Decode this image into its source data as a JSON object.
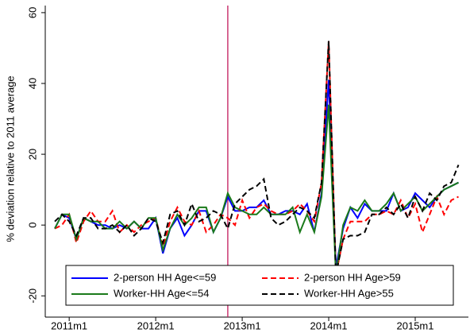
{
  "chart_data": {
    "type": "line",
    "y_label": "% deviation relative to 2011 average",
    "x": [
      "2010m11",
      "2010m12",
      "2011m1",
      "2011m2",
      "2011m3",
      "2011m4",
      "2011m5",
      "2011m6",
      "2011m7",
      "2011m8",
      "2011m9",
      "2011m10",
      "2011m11",
      "2011m12",
      "2012m1",
      "2012m2",
      "2012m3",
      "2012m4",
      "2012m5",
      "2012m6",
      "2012m7",
      "2012m8",
      "2012m9",
      "2012m10",
      "2012m11",
      "2012m12",
      "2013m1",
      "2013m2",
      "2013m3",
      "2013m4",
      "2013m5",
      "2013m6",
      "2013m7",
      "2013m8",
      "2013m9",
      "2013m10",
      "2013m11",
      "2013m12",
      "2014m1",
      "2014m2",
      "2014m3",
      "2014m4",
      "2014m5",
      "2014m6",
      "2014m7",
      "2014m8",
      "2014m9",
      "2014m10",
      "2014m11",
      "2014m12",
      "2015m1",
      "2015m2",
      "2015m3",
      "2015m4",
      "2015m5",
      "2015m6",
      "2015m7"
    ],
    "xticks": [
      "2011m1",
      "2012m1",
      "2013m1",
      "2014m1",
      "2015m1"
    ],
    "ylim": [
      -26,
      62
    ],
    "yticks": [
      -20,
      0,
      20,
      40,
      60
    ],
    "grid": false,
    "vline": {
      "x": "2012m11",
      "color": "#c2185b"
    },
    "series": [
      {
        "name": "2-person HH Age<=59",
        "color": "#0000ff",
        "dash": false,
        "values": [
          -1,
          3,
          2,
          -4,
          2,
          1,
          0,
          0,
          -1,
          0,
          -1,
          1,
          -1,
          -1,
          2,
          -8,
          -1,
          2,
          -3,
          0,
          4,
          4,
          -2,
          2,
          8,
          4,
          4,
          5,
          5,
          7,
          3,
          3,
          4,
          4,
          3,
          6,
          -2,
          9,
          41,
          -12,
          -1,
          5,
          2,
          6,
          4,
          4,
          4,
          9,
          4,
          5,
          9,
          7,
          5,
          8,
          10,
          11,
          12
        ]
      },
      {
        "name": "2-person HH Age>59",
        "color": "#ff0000",
        "dash": true,
        "values": [
          -1,
          0,
          3,
          -5,
          1,
          4,
          1,
          1,
          4,
          -2,
          0,
          -2,
          0,
          1,
          2,
          -6,
          1,
          5,
          1,
          0,
          4,
          -2,
          0,
          3,
          2,
          0,
          7,
          2,
          5,
          6,
          4,
          3,
          3,
          4,
          6,
          4,
          1,
          12,
          52,
          -14,
          -4,
          1,
          1,
          1,
          3,
          3,
          4,
          3,
          7,
          2,
          6,
          -2,
          3,
          8,
          3,
          7,
          8
        ]
      },
      {
        "name": "Worker-HH Age<=54",
        "color": "#1a7a1a",
        "dash": false,
        "values": [
          -1,
          3,
          3,
          -4,
          2,
          1,
          1,
          -1,
          -1,
          1,
          -1,
          1,
          -1,
          2,
          2,
          -7,
          -1,
          3,
          0,
          2,
          5,
          5,
          -2,
          2,
          9,
          5,
          4,
          3,
          3,
          5,
          3,
          3,
          3,
          5,
          -2,
          3,
          -2,
          8,
          34,
          -14,
          0,
          5,
          4,
          7,
          4,
          4,
          6,
          9,
          4,
          6,
          8,
          4,
          6,
          8,
          10,
          11,
          12
        ]
      },
      {
        "name": "Worker-HH Age>55",
        "color": "#000000",
        "dash": true,
        "values": [
          1,
          3,
          1,
          -3,
          2,
          2,
          -1,
          -1,
          0,
          -2,
          0,
          -3,
          -1,
          2,
          1,
          -5,
          3,
          4,
          0,
          6,
          1,
          2,
          4,
          3,
          -1,
          6,
          8,
          10,
          11,
          13,
          2,
          0,
          1,
          3,
          5,
          4,
          2,
          12,
          52,
          -14,
          -4,
          -3,
          -3,
          -2,
          3,
          3,
          5,
          3,
          6,
          2,
          8,
          4,
          9,
          7,
          11,
          12,
          17
        ]
      }
    ]
  }
}
